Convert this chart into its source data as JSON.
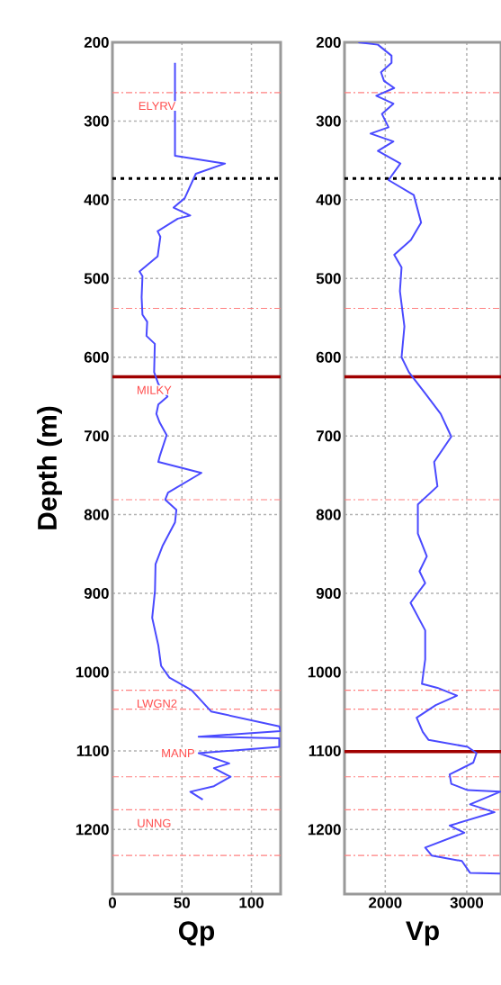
{
  "chart_data": [
    {
      "type": "line",
      "xlabel": "Qp",
      "ylabel": "Depth (m)",
      "xlim": [
        0,
        121
      ],
      "xticks": [
        0,
        50,
        100
      ],
      "ylim": [
        1282,
        200
      ],
      "yticks": [
        200,
        300,
        400,
        500,
        600,
        700,
        800,
        900,
        1000,
        1100,
        1200
      ],
      "grid": true,
      "line_style": "solid",
      "series": [
        {
          "color": "#4a4aff",
          "x": [
            45,
            45,
            81,
            60,
            52,
            44,
            56,
            47,
            32.5,
            34.5,
            32.5,
            19.5,
            21.6,
            21,
            21.6,
            25,
            24.5,
            30.5,
            30,
            33,
            39.6,
            33,
            31.6,
            34,
            39,
            34,
            33,
            64,
            40,
            38,
            46,
            45,
            36,
            31,
            30.6,
            28.6,
            33,
            35,
            41,
            57,
            71,
            120,
            121,
            62,
            120,
            120,
            62,
            84,
            73,
            85,
            73,
            56,
            65
          ],
          "values": [
            226,
            344,
            354,
            367,
            398,
            410,
            420,
            424,
            440,
            447,
            472,
            491,
            497,
            524,
            546,
            555,
            573,
            583,
            619,
            634,
            650,
            660,
            672,
            683,
            699,
            726,
            733,
            747,
            772,
            781,
            794,
            810,
            840,
            863,
            897,
            931,
            966,
            992,
            1007,
            1023,
            1050,
            1069,
            1075,
            1082,
            1084,
            1095,
            1103,
            1116,
            1122,
            1133,
            1145,
            1152,
            1162
          ]
        }
      ],
      "ref_lines": [
        {
          "axis": "y",
          "value": 373,
          "color": "#000000",
          "line_style": "dotted"
        },
        {
          "axis": "y",
          "value": 625,
          "color": "#a00000",
          "line_style": "solid"
        },
        {
          "axis": "y",
          "value": 264,
          "color": "#ff8080",
          "line_style": "dashed"
        },
        {
          "axis": "y",
          "value": 538,
          "color": "#ff8080",
          "line_style": "dashed"
        },
        {
          "axis": "y",
          "value": 781,
          "color": "#ff8080",
          "line_style": "dashed"
        },
        {
          "axis": "y",
          "value": 1023,
          "color": "#ff8080",
          "line_style": "dashed"
        },
        {
          "axis": "y",
          "value": 1047,
          "color": "#ff8080",
          "line_style": "dashed"
        },
        {
          "axis": "y",
          "value": 1133,
          "color": "#ff8080",
          "line_style": "dashed"
        },
        {
          "axis": "y",
          "value": 1175,
          "color": "#ff8080",
          "line_style": "dashed"
        },
        {
          "axis": "y",
          "value": 1233,
          "color": "#ff8080",
          "line_style": "dashed"
        }
      ],
      "annotations": [
        {
          "text": "ELYRV",
          "x": 32,
          "y": 264
        },
        {
          "text": "MILKY",
          "x": 30,
          "y": 625
        },
        {
          "text": "LWGN2",
          "x": 32,
          "y": 1023
        },
        {
          "text": "MANP",
          "x": 62,
          "y": 1103
        },
        {
          "text": "UNNG",
          "x": 30,
          "y": 1175
        }
      ]
    },
    {
      "type": "line",
      "xlabel": "Vp",
      "xlim": [
        1500,
        3420
      ],
      "xticks": [
        2000,
        3000
      ],
      "ylim": [
        1282,
        200
      ],
      "yticks": [
        200,
        300,
        400,
        500,
        600,
        700,
        800,
        900,
        1000,
        1100,
        1200
      ],
      "grid": true,
      "line_style": "solid",
      "series": [
        {
          "color": "#4a4aff",
          "x": [
            1670,
            1910,
            2077,
            2077,
            1948,
            1985,
            2110,
            1890,
            2100,
            1960,
            2040,
            1820,
            2100,
            1910,
            2186,
            2040,
            2350,
            2440,
            2315,
            2110,
            2200,
            2180,
            2235,
            2200,
            2290,
            2490,
            2680,
            2810,
            2600,
            2640,
            2400,
            2400,
            2510,
            2420,
            2490,
            2310,
            2490,
            2490,
            2450,
            2640,
            2880,
            2620,
            2385,
            2460,
            2530,
            3010,
            3120,
            3080,
            2790,
            2810,
            3010,
            3410,
            3040,
            3340,
            2790,
            2970,
            2490,
            2570,
            2940,
            3040,
            3410
          ],
          "values": [
            200,
            203,
            217,
            226,
            238,
            249,
            258,
            268,
            278,
            291,
            308,
            316,
            326,
            338,
            354,
            375,
            394,
            429,
            451,
            470,
            486,
            516,
            561,
            600,
            619,
            646,
            672,
            701,
            733,
            764,
            787,
            824,
            853,
            872,
            887,
            912,
            947,
            984,
            1015,
            1020,
            1030,
            1042,
            1058,
            1076,
            1086,
            1095,
            1103,
            1115,
            1130,
            1142,
            1150,
            1152,
            1168,
            1178,
            1195,
            1204,
            1223,
            1233,
            1240,
            1255,
            1256
          ]
        }
      ],
      "ref_lines": [
        {
          "axis": "y",
          "value": 373,
          "color": "#000000",
          "line_style": "dotted"
        },
        {
          "axis": "y",
          "value": 625,
          "color": "#a00000",
          "line_style": "solid"
        },
        {
          "axis": "y",
          "value": 1101,
          "color": "#a00000",
          "line_style": "solid"
        },
        {
          "axis": "y",
          "value": 264,
          "color": "#ff8080",
          "line_style": "dashed"
        },
        {
          "axis": "y",
          "value": 538,
          "color": "#ff8080",
          "line_style": "dashed"
        },
        {
          "axis": "y",
          "value": 781,
          "color": "#ff8080",
          "line_style": "dashed"
        },
        {
          "axis": "y",
          "value": 1023,
          "color": "#ff8080",
          "line_style": "dashed"
        },
        {
          "axis": "y",
          "value": 1047,
          "color": "#ff8080",
          "line_style": "dashed"
        },
        {
          "axis": "y",
          "value": 1133,
          "color": "#ff8080",
          "line_style": "dashed"
        },
        {
          "axis": "y",
          "value": 1175,
          "color": "#ff8080",
          "line_style": "dashed"
        },
        {
          "axis": "y",
          "value": 1233,
          "color": "#ff8080",
          "line_style": "dashed"
        }
      ]
    }
  ]
}
